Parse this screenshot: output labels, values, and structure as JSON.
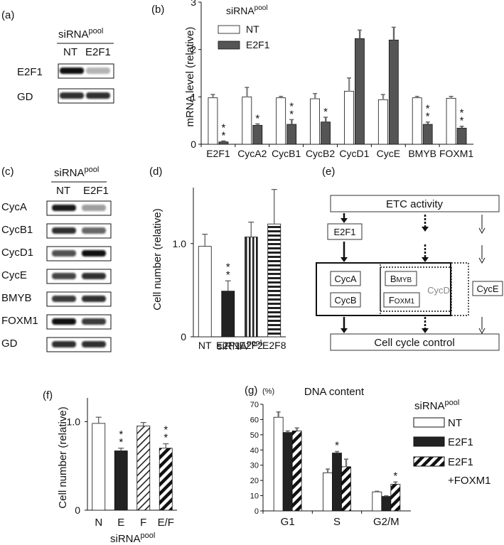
{
  "panel_a": {
    "label": "(a)",
    "header": "siRNA",
    "header_sup": "pool",
    "lanes": [
      "NT",
      "E2F1"
    ],
    "rows": [
      {
        "label": "E2F1",
        "bands": [
          1.0,
          0.25
        ]
      },
      {
        "label": "GD",
        "bands": [
          0.85,
          0.85
        ]
      }
    ]
  },
  "panel_c": {
    "label": "(c)",
    "header": "siRNA",
    "header_sup": "pool",
    "lanes": [
      "NT",
      "E2F1"
    ],
    "rows": [
      {
        "label": "CycA",
        "bands": [
          0.95,
          0.35
        ]
      },
      {
        "label": "CycB1",
        "bands": [
          0.85,
          0.6
        ]
      },
      {
        "label": "CycD1",
        "bands": [
          0.7,
          1.0
        ]
      },
      {
        "label": "CycE",
        "bands": [
          0.75,
          0.85
        ]
      },
      {
        "label": "BMYB",
        "bands": [
          0.8,
          0.85
        ]
      },
      {
        "label": "FOXM1",
        "bands": [
          1.0,
          0.8
        ]
      },
      {
        "label": "GD",
        "bands": [
          0.85,
          0.85
        ]
      }
    ]
  },
  "panel_e": {
    "label": "(e)",
    "top_box": "ETC activity",
    "e2f1_box": "E2F1",
    "cyca": "CycA",
    "cycb": "CycB",
    "bmyb_first": "B",
    "bmyb_rest": "MYB",
    "foxm1_first": "F",
    "foxm1_rest": "OXM1",
    "cycd": "CycD",
    "cyce": "CycE",
    "bottom_box": "Cell cycle control"
  },
  "chart_data": [
    {
      "panel": "(b)",
      "type": "bar",
      "ylabel": "mRNA level (relative)",
      "ylim": [
        0,
        3
      ],
      "yticks": [
        0,
        1,
        2,
        3
      ],
      "categories": [
        "E2F1",
        "CycA2",
        "CycB1",
        "CycB2",
        "CycD1",
        "CycE",
        "BMYB",
        "FOXM1"
      ],
      "legend_title": "siRNA",
      "legend_title_sup": "pool",
      "series": [
        {
          "name": "NT",
          "color": "#ffffff",
          "values": [
            0.98,
            1.0,
            0.98,
            0.96,
            1.12,
            0.94,
            0.98,
            0.97
          ],
          "errors": [
            0.07,
            0.2,
            0.03,
            0.11,
            0.28,
            0.11,
            0.03,
            0.04
          ]
        },
        {
          "name": "E2F1",
          "color": "#555555",
          "values": [
            0.05,
            0.4,
            0.42,
            0.47,
            2.23,
            2.2,
            0.42,
            0.34
          ],
          "errors": [
            0.02,
            0.03,
            0.1,
            0.1,
            0.18,
            0.27,
            0.05,
            0.04
          ]
        }
      ],
      "marks": [
        "**",
        "*",
        "**",
        "*",
        "",
        "",
        "**",
        "**"
      ]
    },
    {
      "panel": "(d)",
      "type": "bar",
      "ylabel": "Cell number (relative)",
      "xlabel": "siRNA",
      "xlabel_sup": "pool",
      "ylim": [
        0,
        1.6
      ],
      "yticks": [
        0,
        1.0
      ],
      "yticklabels": [
        "0",
        "1.0"
      ],
      "categories": [
        "NT",
        "E2F1",
        "E2F2",
        "E2F8"
      ],
      "values": [
        0.97,
        0.49,
        1.07,
        1.21
      ],
      "errors": [
        0.13,
        0.11,
        0.16,
        0.37
      ],
      "fills": [
        "white",
        "dark",
        "vlines",
        "hlines"
      ],
      "marks": [
        "",
        "**",
        "",
        ""
      ]
    },
    {
      "panel": "(f)",
      "type": "bar",
      "ylabel": "Cell number (relative)",
      "xlabel": "siRNA",
      "xlabel_sup": "pool",
      "ylim": [
        0,
        1.3
      ],
      "yticks": [
        0,
        1.0
      ],
      "yticklabels": [
        "0",
        "1.0"
      ],
      "categories": [
        "N",
        "E",
        "F",
        "E/F"
      ],
      "values": [
        0.98,
        0.67,
        0.95,
        0.7
      ],
      "errors": [
        0.07,
        0.03,
        0.04,
        0.05
      ],
      "fills": [
        "white",
        "dark",
        "diag-thin",
        "diag-thick"
      ],
      "marks": [
        "",
        "**",
        "",
        "**"
      ]
    },
    {
      "panel": "(g)",
      "type": "bar",
      "title": "DNA content",
      "yunit": "(%)",
      "ylim": [
        0,
        70
      ],
      "yticks": [
        0,
        10,
        20,
        30,
        40,
        50,
        60,
        70
      ],
      "categories": [
        "G1",
        "S",
        "G2/M"
      ],
      "legend_title": "siRNA",
      "legend_title_sup": "pool",
      "series": [
        {
          "name": "NT",
          "fill": "white",
          "values": [
            61.5,
            25,
            12.5
          ],
          "errors": [
            3.5,
            2.5,
            0.4
          ]
        },
        {
          "name": "E2F1",
          "fill": "dark",
          "values": [
            51.5,
            38,
            9.5
          ],
          "errors": [
            1,
            1,
            0.4
          ]
        },
        {
          "name": "E2F1",
          "name_line2": "+FOXM1",
          "fill": "diag-thick",
          "values": [
            52.5,
            29,
            17.5
          ],
          "errors": [
            2,
            5,
            1.5
          ]
        }
      ],
      "marks": [
        [
          "",
          "",
          ""
        ],
        [
          "",
          "*",
          ""
        ],
        [
          "",
          "",
          "*"
        ]
      ]
    }
  ]
}
